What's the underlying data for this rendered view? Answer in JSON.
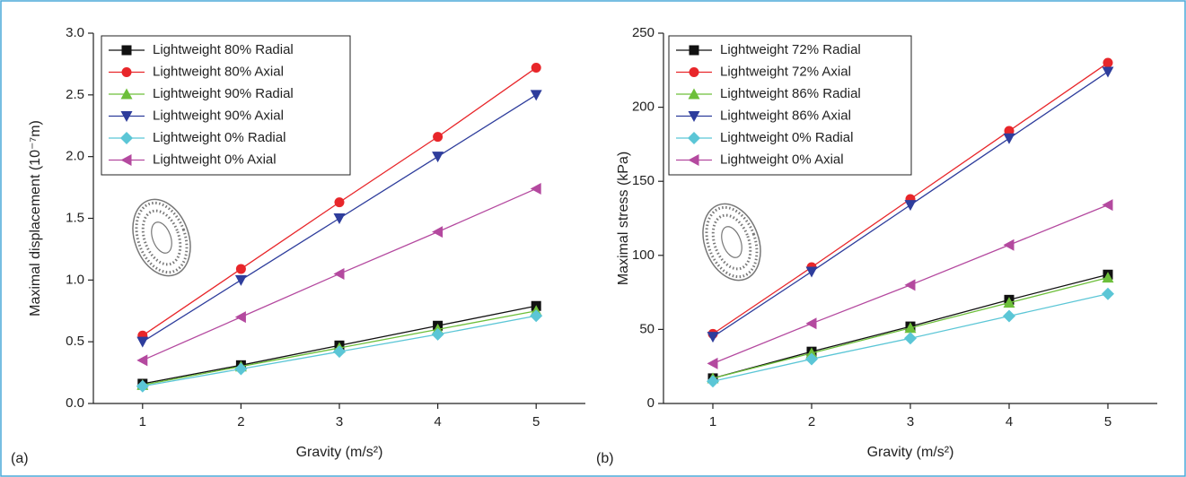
{
  "chart_data": [
    {
      "type": "line",
      "panel_label": "(a)",
      "x_label": "Gravity (m/s²)",
      "y_label": "Maximal displacement (10⁻⁷m)",
      "x": [
        1,
        2,
        3,
        4,
        5
      ],
      "xlim": [
        0.5,
        5.5
      ],
      "xticks": [
        1,
        2,
        3,
        4,
        5
      ],
      "ylim": [
        0,
        3
      ],
      "yticks": [
        {
          "value": 0,
          "label": "0.0"
        },
        0.5,
        {
          "value": 1,
          "label": "1.0"
        },
        1.5,
        {
          "value": 2,
          "label": "2.0"
        },
        2.5,
        {
          "value": 3,
          "label": "3.0"
        }
      ],
      "legend": "upper left",
      "series": [
        {
          "name": "Lightweight 80% Radial",
          "color": "#111111",
          "marker": "square",
          "values": [
            0.16,
            0.31,
            0.47,
            0.63,
            0.79
          ]
        },
        {
          "name": "Lightweight 80% Axial",
          "color": "#e8262a",
          "marker": "circle",
          "values": [
            0.55,
            1.09,
            1.63,
            2.16,
            2.72
          ]
        },
        {
          "name": "Lightweight 90% Radial",
          "color": "#6dbf3a",
          "marker": "triangle-up",
          "values": [
            0.15,
            0.3,
            0.45,
            0.6,
            0.75
          ]
        },
        {
          "name": "Lightweight 90% Axial",
          "color": "#2e3d9c",
          "marker": "triangle-down",
          "values": [
            0.5,
            1.0,
            1.5,
            2.0,
            2.5
          ]
        },
        {
          "name": "Lightweight 0% Radial",
          "color": "#5bc6d6",
          "marker": "diamond",
          "values": [
            0.14,
            0.28,
            0.42,
            0.56,
            0.71
          ]
        },
        {
          "name": "Lightweight 0% Axial",
          "color": "#b4499f",
          "marker": "triangle-left",
          "values": [
            0.35,
            0.7,
            1.05,
            1.39,
            1.74
          ]
        }
      ]
    },
    {
      "type": "line",
      "panel_label": "(b)",
      "x_label": "Gravity (m/s²)",
      "y_label": "Maximal stress (kPa)",
      "x": [
        1,
        2,
        3,
        4,
        5
      ],
      "xlim": [
        0.5,
        5.5
      ],
      "xticks": [
        1,
        2,
        3,
        4,
        5
      ],
      "ylim": [
        0,
        250
      ],
      "yticks": [
        0,
        50,
        100,
        150,
        200,
        250
      ],
      "legend": "upper left",
      "series": [
        {
          "name": "Lightweight 72% Radial",
          "color": "#111111",
          "marker": "square",
          "values": [
            17,
            35,
            52,
            70,
            87
          ]
        },
        {
          "name": "Lightweight 72% Axial",
          "color": "#e8262a",
          "marker": "circle",
          "values": [
            47,
            92,
            138,
            184,
            230
          ]
        },
        {
          "name": "Lightweight 86% Radial",
          "color": "#6dbf3a",
          "marker": "triangle-up",
          "values": [
            17,
            34,
            51,
            68,
            85
          ]
        },
        {
          "name": "Lightweight 86% Axial",
          "color": "#2e3d9c",
          "marker": "triangle-down",
          "values": [
            45,
            89,
            134,
            179,
            224
          ]
        },
        {
          "name": "Lightweight 0% Radial",
          "color": "#5bc6d6",
          "marker": "diamond",
          "values": [
            15,
            30,
            44,
            59,
            74
          ]
        },
        {
          "name": "Lightweight 0% Axial",
          "color": "#b4499f",
          "marker": "triangle-left",
          "values": [
            27,
            54,
            80,
            107,
            134
          ]
        }
      ]
    }
  ]
}
